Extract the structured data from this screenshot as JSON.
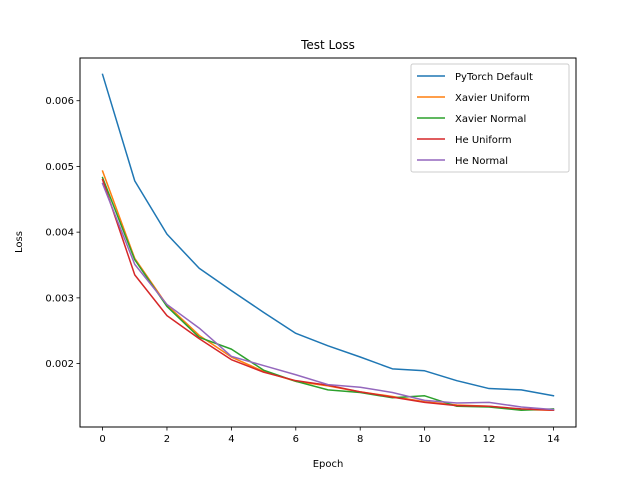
{
  "chart_data": {
    "type": "line",
    "title": "Test Loss",
    "xlabel": "Epoch",
    "ylabel": "Loss",
    "xlim": [
      -0.7,
      14.7
    ],
    "ylim": [
      0.001035,
      0.00665
    ],
    "xticks": [
      0,
      2,
      4,
      6,
      8,
      10,
      12,
      14
    ],
    "xtick_labels": [
      "0",
      "2",
      "4",
      "6",
      "8",
      "10",
      "12",
      "14"
    ],
    "yticks": [
      0.002,
      0.003,
      0.004,
      0.005,
      0.006
    ],
    "ytick_labels": [
      "0.002",
      "0.003",
      "0.004",
      "0.005",
      "0.006"
    ],
    "grid": false,
    "legend_position": "top-right",
    "x": [
      0,
      1,
      2,
      3,
      4,
      5,
      6,
      7,
      8,
      9,
      10,
      11,
      12,
      13,
      14
    ],
    "series": [
      {
        "name": "PyTorch Default",
        "color": "#1f77b4",
        "values": [
          0.0064,
          0.00478,
          0.00397,
          0.00345,
          0.00311,
          0.00278,
          0.00246,
          0.00227,
          0.0021,
          0.00192,
          0.00189,
          0.00174,
          0.00162,
          0.0016,
          0.00151
        ]
      },
      {
        "name": "Xavier Uniform",
        "color": "#ff7f0e",
        "values": [
          0.00493,
          0.0036,
          0.00289,
          0.00243,
          0.0021,
          0.00188,
          0.00173,
          0.00166,
          0.00157,
          0.0015,
          0.00142,
          0.00137,
          0.00135,
          0.0013,
          0.00129
        ]
      },
      {
        "name": "Xavier Normal",
        "color": "#2ca02c",
        "values": [
          0.00483,
          0.00358,
          0.00287,
          0.0024,
          0.00222,
          0.0019,
          0.00173,
          0.0016,
          0.00156,
          0.00148,
          0.00151,
          0.00135,
          0.00134,
          0.00129,
          0.00131
        ]
      },
      {
        "name": "He Uniform",
        "color": "#d62728",
        "values": [
          0.0048,
          0.00335,
          0.00273,
          0.00238,
          0.00206,
          0.00187,
          0.00174,
          0.00167,
          0.00157,
          0.00149,
          0.00141,
          0.00136,
          0.00135,
          0.00131,
          0.00129
        ]
      },
      {
        "name": "He Normal",
        "color": "#9467bd",
        "values": [
          0.00474,
          0.00351,
          0.0029,
          0.00254,
          0.00211,
          0.00197,
          0.00183,
          0.00168,
          0.00164,
          0.00156,
          0.00144,
          0.0014,
          0.00141,
          0.00134,
          0.0013
        ]
      }
    ]
  }
}
